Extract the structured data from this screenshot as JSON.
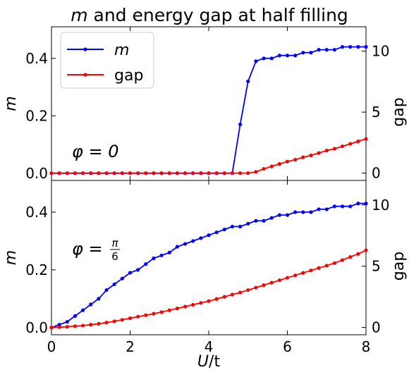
{
  "figure": {
    "title_math": "m",
    "title_rest": " and energy gap at half filling",
    "xlabel_var": "U",
    "xlabel_rest": "/t"
  },
  "chart_data": [
    {
      "type": "line",
      "panel": "top",
      "annotation": "φ = 0",
      "xlim": [
        0,
        8
      ],
      "ylim_left": [
        -0.025,
        0.51
      ],
      "ylim_right": [
        -0.6,
        12
      ],
      "left_ylabel": "m",
      "right_ylabel": "gap",
      "left_yticks": [
        0.0,
        0.2,
        0.4
      ],
      "right_yticks": [
        0,
        5,
        10
      ],
      "xticks": [
        0,
        2,
        4,
        6,
        8
      ],
      "legend": {
        "position": "top-left"
      },
      "colors": {
        "m": "#0000ff",
        "gap": "#ff0000"
      },
      "series": [
        {
          "name": "m",
          "axis": "left",
          "x": [
            0,
            0.2,
            0.4,
            0.6,
            0.8,
            1.0,
            1.2,
            1.4,
            1.6,
            1.8,
            2.0,
            2.2,
            2.4,
            2.6,
            2.8,
            3.0,
            3.2,
            3.4,
            3.6,
            3.8,
            4.0,
            4.2,
            4.4,
            4.6,
            4.8,
            5.0,
            5.2,
            5.4,
            5.6,
            5.8,
            6.0,
            6.2,
            6.4,
            6.6,
            6.8,
            7.0,
            7.2,
            7.4,
            7.6,
            7.8,
            8.0
          ],
          "values": [
            0,
            0,
            0,
            0,
            0,
            0,
            0,
            0,
            0,
            0,
            0,
            0,
            0,
            0,
            0,
            0,
            0,
            0,
            0,
            0,
            0,
            0,
            0,
            0,
            0.17,
            0.32,
            0.39,
            0.4,
            0.4,
            0.41,
            0.41,
            0.41,
            0.42,
            0.42,
            0.43,
            0.43,
            0.43,
            0.44,
            0.44,
            0.44,
            0.44
          ]
        },
        {
          "name": "gap",
          "axis": "right",
          "x": [
            0,
            0.2,
            0.4,
            0.6,
            0.8,
            1.0,
            1.2,
            1.4,
            1.6,
            1.8,
            2.0,
            2.2,
            2.4,
            2.6,
            2.8,
            3.0,
            3.2,
            3.4,
            3.6,
            3.8,
            4.0,
            4.2,
            4.4,
            4.6,
            4.8,
            5.0,
            5.2,
            5.4,
            5.6,
            5.8,
            6.0,
            6.2,
            6.4,
            6.6,
            6.8,
            7.0,
            7.2,
            7.4,
            7.6,
            7.8,
            8.0
          ],
          "values": [
            0,
            0,
            0,
            0,
            0,
            0,
            0,
            0,
            0,
            0,
            0,
            0,
            0,
            0,
            0,
            0,
            0,
            0,
            0,
            0,
            0,
            0,
            0,
            0,
            0,
            0,
            0.1,
            0.35,
            0.55,
            0.75,
            0.95,
            1.1,
            1.3,
            1.45,
            1.65,
            1.85,
            2.0,
            2.2,
            2.4,
            2.6,
            2.8
          ]
        }
      ]
    },
    {
      "type": "line",
      "panel": "bottom",
      "annotation": "φ = π/6",
      "xlim": [
        0,
        8
      ],
      "ylim_left": [
        -0.025,
        0.51
      ],
      "ylim_right": [
        -0.6,
        12
      ],
      "left_ylabel": "m",
      "right_ylabel": "gap",
      "left_yticks": [
        0.0,
        0.2,
        0.4
      ],
      "right_yticks": [
        0,
        5,
        10
      ],
      "xticks": [
        0,
        2,
        4,
        6,
        8
      ],
      "colors": {
        "m": "#0000ff",
        "gap": "#ff0000"
      },
      "series": [
        {
          "name": "m",
          "axis": "left",
          "x": [
            0,
            0.2,
            0.4,
            0.6,
            0.8,
            1.0,
            1.2,
            1.4,
            1.6,
            1.8,
            2.0,
            2.2,
            2.4,
            2.6,
            2.8,
            3.0,
            3.2,
            3.4,
            3.6,
            3.8,
            4.0,
            4.2,
            4.4,
            4.6,
            4.8,
            5.0,
            5.2,
            5.4,
            5.6,
            5.8,
            6.0,
            6.2,
            6.4,
            6.6,
            6.8,
            7.0,
            7.2,
            7.4,
            7.6,
            7.8,
            8.0
          ],
          "values": [
            0.0,
            0.01,
            0.02,
            0.04,
            0.06,
            0.08,
            0.1,
            0.13,
            0.15,
            0.17,
            0.19,
            0.2,
            0.22,
            0.24,
            0.25,
            0.26,
            0.28,
            0.29,
            0.3,
            0.31,
            0.32,
            0.33,
            0.34,
            0.35,
            0.35,
            0.36,
            0.37,
            0.37,
            0.38,
            0.39,
            0.39,
            0.4,
            0.4,
            0.4,
            0.41,
            0.41,
            0.42,
            0.42,
            0.42,
            0.43,
            0.43
          ]
        },
        {
          "name": "gap",
          "axis": "right",
          "x": [
            0,
            0.2,
            0.4,
            0.6,
            0.8,
            1.0,
            1.2,
            1.4,
            1.6,
            1.8,
            2.0,
            2.2,
            2.4,
            2.6,
            2.8,
            3.0,
            3.2,
            3.4,
            3.6,
            3.8,
            4.0,
            4.2,
            4.4,
            4.6,
            4.8,
            5.0,
            5.2,
            5.4,
            5.6,
            5.8,
            6.0,
            6.2,
            6.4,
            6.6,
            6.8,
            7.0,
            7.2,
            7.4,
            7.6,
            7.8,
            8.0
          ],
          "values": [
            0,
            0.02,
            0.05,
            0.1,
            0.15,
            0.22,
            0.3,
            0.4,
            0.5,
            0.62,
            0.75,
            0.88,
            1.0,
            1.12,
            1.25,
            1.4,
            1.55,
            1.7,
            1.85,
            2.0,
            2.15,
            2.32,
            2.5,
            2.68,
            2.85,
            3.05,
            3.25,
            3.45,
            3.65,
            3.85,
            4.05,
            4.25,
            4.45,
            4.65,
            4.85,
            5.05,
            5.25,
            5.5,
            5.75,
            6.0,
            6.3
          ]
        }
      ]
    }
  ]
}
